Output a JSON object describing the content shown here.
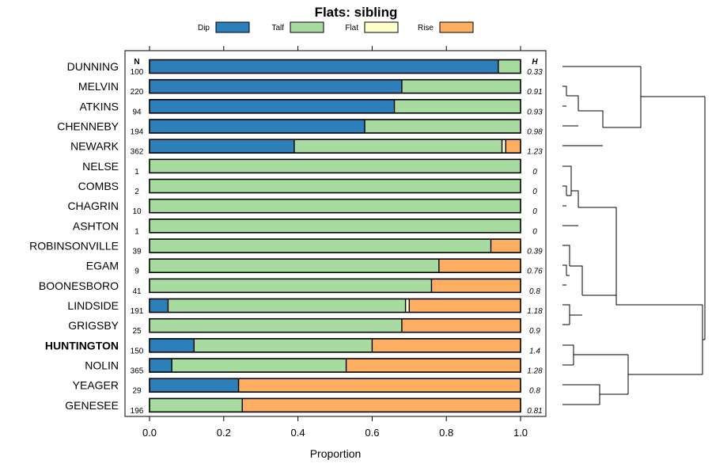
{
  "chart_data": {
    "type": "bar",
    "orientation": "horizontal",
    "stacked": true,
    "title": "Flats: sibling",
    "xlabel": "Proportion",
    "xlim": [
      0,
      1
    ],
    "x_ticks": [
      "0.0",
      "0.2",
      "0.4",
      "0.6",
      "0.8",
      "1.0"
    ],
    "n_header": "N",
    "h_header": "H",
    "legend": [
      {
        "name": "Dip",
        "color": "#2c7fb8"
      },
      {
        "name": "Talf",
        "color": "#a8dba0"
      },
      {
        "name": "Flat",
        "color": "#ffffcc"
      },
      {
        "name": "Rise",
        "color": "#fdae61"
      }
    ],
    "categories": [
      "DUNNING",
      "MELVIN",
      "ATKINS",
      "CHENNEBY",
      "NEWARK",
      "NELSE",
      "COMBS",
      "CHAGRIN",
      "ASHTON",
      "ROBINSONVILLE",
      "EGAM",
      "BOONESBORO",
      "LINDSIDE",
      "GRIGSBY",
      "HUNTINGTON",
      "NOLIN",
      "YEAGER",
      "GENESEE"
    ],
    "highlighted": [
      "HUNTINGTON"
    ],
    "n": [
      "100",
      "220",
      "94",
      "194",
      "362",
      "1",
      "2",
      "10",
      "1",
      "39",
      "9",
      "41",
      "191",
      "25",
      "150",
      "365",
      "29",
      "196"
    ],
    "h": [
      "0.33",
      "0.91",
      "0.93",
      "0.98",
      "1.23",
      "0",
      "0",
      "0",
      "0",
      "0.39",
      "0.76",
      "0.8",
      "1.18",
      "0.9",
      "1.4",
      "1.28",
      "0.8",
      "0.81"
    ],
    "series": [
      {
        "name": "Dip",
        "values": [
          0.94,
          0.68,
          0.66,
          0.58,
          0.39,
          0,
          0,
          0,
          0,
          0,
          0,
          0,
          0.05,
          0,
          0.12,
          0.06,
          0.24,
          0
        ]
      },
      {
        "name": "Talf",
        "values": [
          0.06,
          0.32,
          0.34,
          0.42,
          0.56,
          1,
          1,
          1,
          1,
          0.92,
          0.78,
          0.76,
          0.64,
          0.68,
          0.48,
          0.47,
          0,
          0.25
        ]
      },
      {
        "name": "Flat",
        "values": [
          0,
          0,
          0,
          0,
          0.01,
          0,
          0,
          0,
          0,
          0,
          0,
          0,
          0.01,
          0,
          0,
          0,
          0,
          0
        ]
      },
      {
        "name": "Rise",
        "values": [
          0,
          0,
          0,
          0,
          0.04,
          0,
          0,
          0,
          0,
          0.08,
          0.22,
          0.24,
          0.3,
          0.32,
          0.4,
          0.47,
          0.76,
          0.75
        ]
      }
    ],
    "dendrogram": [
      {
        "left": "DUNNING",
        "right": "C1",
        "id": "C0"
      }
    ]
  }
}
